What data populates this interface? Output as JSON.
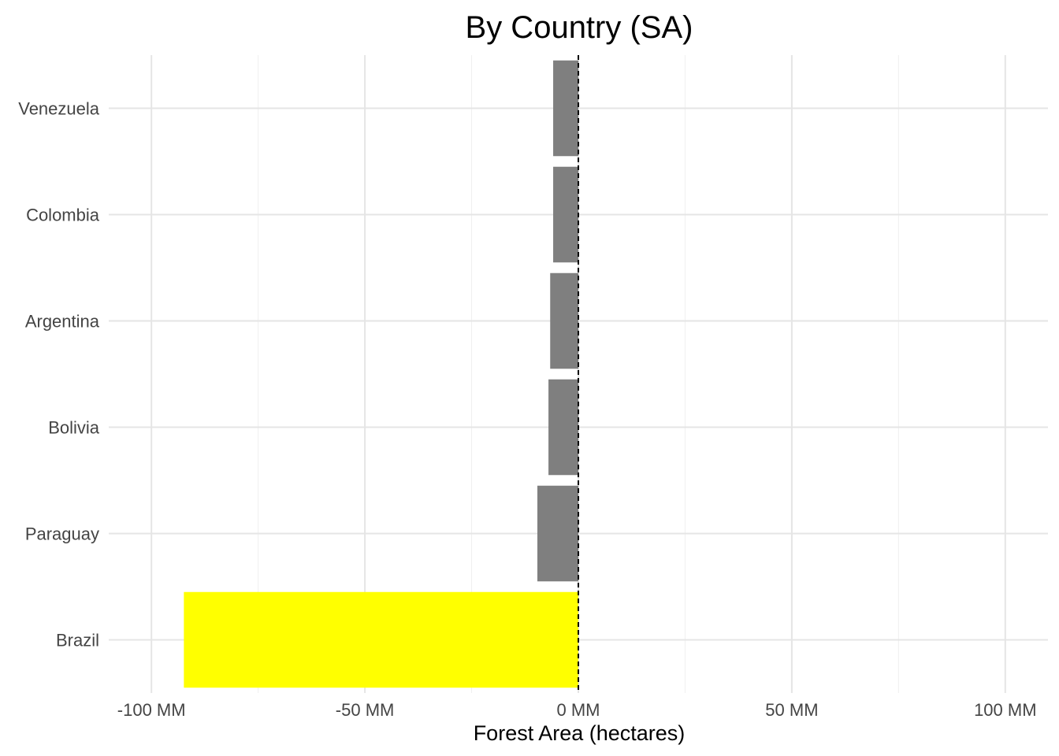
{
  "chart_data": {
    "type": "bar",
    "orientation": "horizontal",
    "title": "By Country (SA)",
    "xlabel": "Forest Area (hectares)",
    "ylabel": "",
    "xlim": [
      -110,
      110
    ],
    "x_ticks": [
      -100,
      -50,
      0,
      50,
      100
    ],
    "x_tick_labels": [
      "-100 MM",
      "-50 MM",
      "0 MM",
      "50 MM",
      "100 MM"
    ],
    "categories": [
      "Brazil",
      "Paraguay",
      "Bolivia",
      "Argentina",
      "Colombia",
      "Venezuela"
    ],
    "values": [
      -92.4,
      -9.6,
      -7.0,
      -6.6,
      -5.9,
      -5.9
    ],
    "units": "million hectares",
    "highlight": "Brazil",
    "reference_line": 0,
    "grid": true,
    "colors": {
      "highlight": "#ffff00",
      "bar": "#7f7f7f",
      "grid_major": "#e5e5e5",
      "grid_minor": "#efefef",
      "reference": "#000000"
    }
  }
}
